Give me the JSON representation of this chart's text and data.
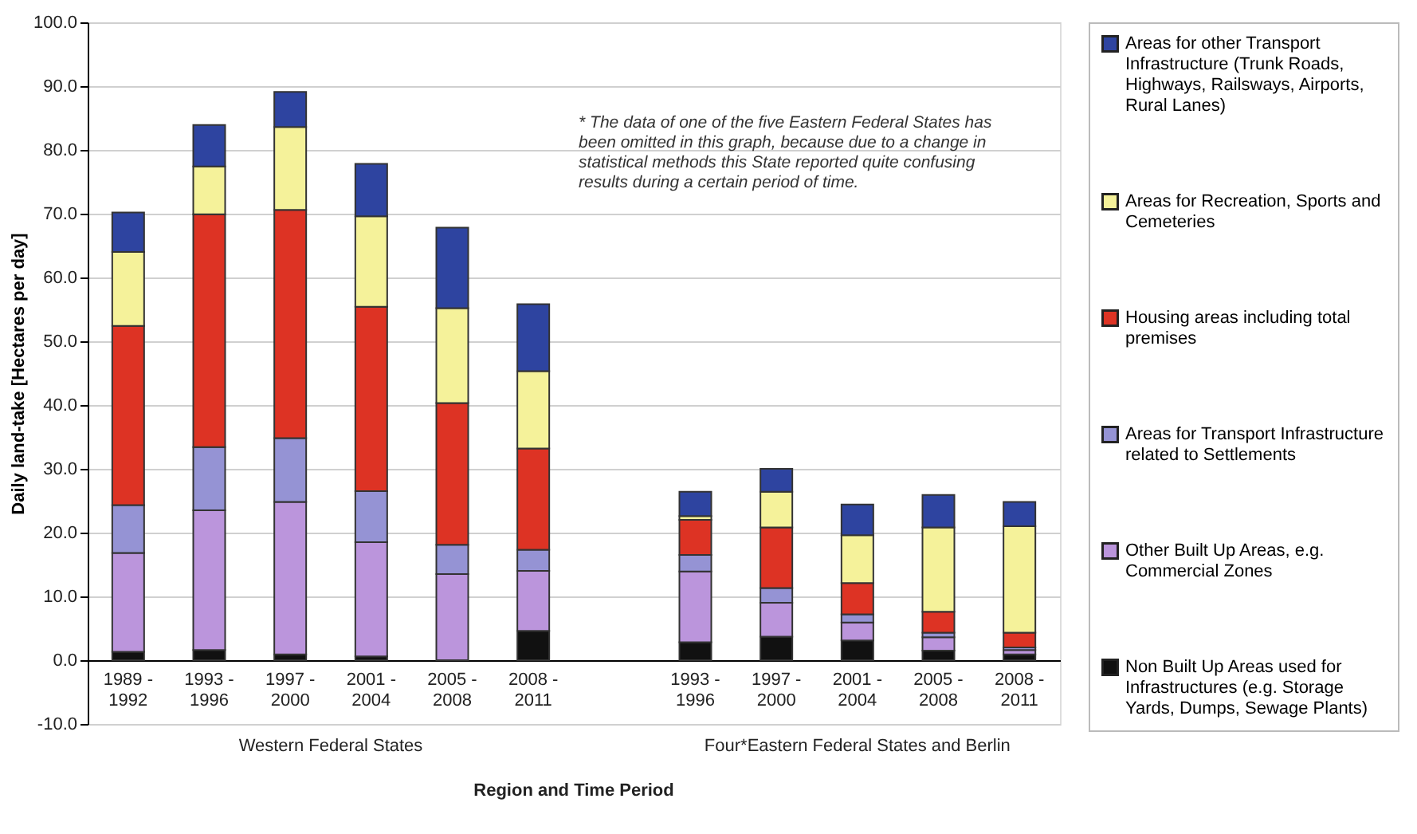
{
  "chart_data": {
    "type": "bar",
    "stacked": true,
    "xlabel": "Region and Time Period",
    "ylabel": "Daily land-take [Hectares per day]",
    "categories": [
      "1989 - 1992",
      "1993 - 1996",
      "1997 - 2000",
      "2001 - 2004",
      "2005 - 2008",
      "2008 - 2011",
      null,
      "1993 - 1996",
      "1997 - 2000",
      "2001 - 2004",
      "2005 - 2008",
      "2008 - 2011"
    ],
    "series": [
      {
        "name": "Non Built Up Areas used for Infrastructures (e.g. Storage Yards, Dumps, Sewage Plants)",
        "color": "#111111",
        "values": [
          1.3,
          1.6,
          0.9,
          0.6,
          null,
          4.6,
          null,
          2.8,
          3.7,
          3.1,
          1.5,
          0.9
        ]
      },
      {
        "name": "Other Built Up Areas, e.g. Commercial Zones",
        "color": "#bb95dc",
        "values": [
          15.5,
          21.9,
          23.9,
          17.9,
          13.5,
          9.4,
          null,
          11.1,
          5.3,
          2.8,
          2.1,
          0.7
        ]
      },
      {
        "name": "Areas for Transport Infrastructure related to Settlements",
        "color": "#9593d4",
        "values": [
          7.5,
          9.9,
          10.0,
          8.0,
          4.6,
          3.3,
          null,
          2.6,
          2.3,
          1.3,
          0.7,
          0.4
        ]
      },
      {
        "name": "Housing areas including total premises",
        "color": "#dd3324",
        "values": [
          28.1,
          36.5,
          35.8,
          28.9,
          22.2,
          15.9,
          null,
          5.5,
          9.5,
          4.9,
          3.3,
          2.3
        ]
      },
      {
        "name": "Areas for Recreation, Sports and Cemeteries",
        "color": "#f5f29a",
        "values": [
          11.6,
          7.5,
          13.0,
          14.2,
          14.9,
          12.1,
          null,
          0.6,
          5.6,
          7.5,
          13.2,
          16.7
        ]
      },
      {
        "name": "Areas for other Transport Infrastructure (Trunk Roads, Highways, Railsways, Airports, Rural Lanes)",
        "color": "#2e44a0",
        "values": [
          6.2,
          6.5,
          5.5,
          8.2,
          12.6,
          10.5,
          null,
          3.8,
          3.6,
          4.8,
          5.1,
          3.8
        ]
      }
    ],
    "ylim": [
      -10,
      100
    ],
    "yticks": [
      {
        "value": -10,
        "label": "-10.0"
      },
      {
        "value": 0,
        "label": "0.0"
      },
      {
        "value": 10,
        "label": "10.0"
      },
      {
        "value": 20,
        "label": "20.0"
      },
      {
        "value": 30,
        "label": "30.0"
      },
      {
        "value": 40,
        "label": "40.0"
      },
      {
        "value": 50,
        "label": "50.0"
      },
      {
        "value": 60,
        "label": "60.0"
      },
      {
        "value": 70,
        "label": "70.0"
      },
      {
        "value": 80,
        "label": "80.0"
      },
      {
        "value": 90,
        "label": "90.0"
      },
      {
        "value": 100,
        "label": "100.0"
      }
    ],
    "grid": "y",
    "legend": "right",
    "annotations": [
      "* The data of one of the five Eastern Federal States has been omitted in this graph, because due to a change in statistical methods this State reported quite confusing results during a certain period of time.",
      "Western Federal States",
      "Four*Eastern Federal States and Berlin"
    ]
  }
}
